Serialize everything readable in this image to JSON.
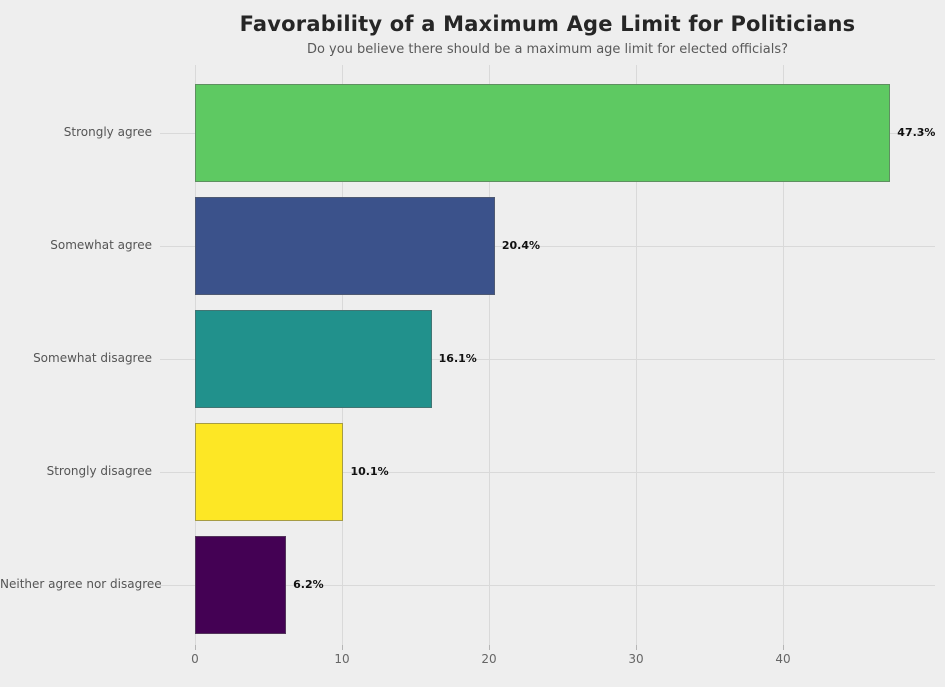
{
  "figure": {
    "title": "Favorability of a Maximum Age Limit for Politicians",
    "subtitle": "Do you believe there should be a maximum age limit for elected officials?",
    "background_color": "#eeeeee"
  },
  "chart_data": {
    "type": "bar",
    "orientation": "horizontal",
    "title": "Favorability of a Maximum Age Limit for Politicians",
    "subtitle": "Do you believe there should be a maximum age limit for elected officials?",
    "categories": [
      "Strongly agree",
      "Somewhat agree",
      "Somewhat disagree",
      "Strongly disagree",
      "Neither agree nor disagree"
    ],
    "values": [
      47.3,
      20.4,
      16.1,
      10.1,
      6.2
    ],
    "value_labels": [
      "47.3%",
      "20.4%",
      "16.1%",
      "10.1%",
      "6.2%"
    ],
    "bar_colors": [
      "#5ec962",
      "#3b528b",
      "#21918c",
      "#fde725",
      "#440154"
    ],
    "bar_edge_color": "#5f5f5f",
    "xlabel": "",
    "ylabel": "",
    "x_ticks": [
      0,
      10,
      20,
      30,
      40
    ],
    "x_tick_labels": [
      "0",
      "10",
      "20",
      "30",
      "40"
    ],
    "xlim": [
      -2.4,
      50.3
    ],
    "grid": true,
    "gridline_color": "#d9d9d9",
    "legend": false
  }
}
